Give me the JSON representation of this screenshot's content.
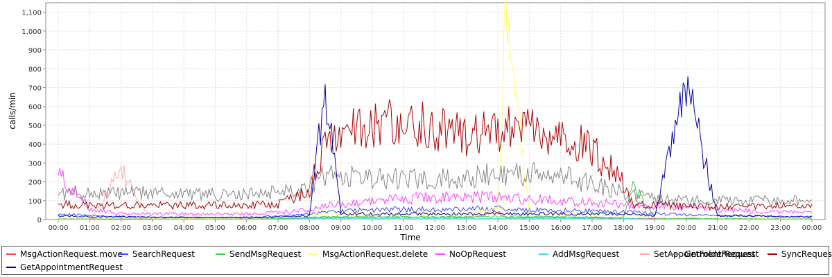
{
  "chart_data": {
    "type": "line",
    "title": "",
    "xlabel": "Time",
    "ylabel": "calls/min",
    "ylim": [
      0,
      1150
    ],
    "y_ticks": [
      0,
      100,
      200,
      300,
      400,
      500,
      600,
      700,
      800,
      900,
      1000,
      1100
    ],
    "y_tick_labels": [
      "0",
      "100",
      "200",
      "300",
      "400",
      "500",
      "600",
      "700",
      "800",
      "900",
      "1,000",
      "1,100"
    ],
    "x_tick_labels": [
      "00:00",
      "01:00",
      "02:00",
      "03:00",
      "04:00",
      "05:00",
      "06:00",
      "07:00",
      "08:00",
      "09:00",
      "10:00",
      "11:00",
      "12:00",
      "13:00",
      "14:00",
      "15:00",
      "16:00",
      "17:00",
      "18:00",
      "19:00",
      "20:00",
      "21:00",
      "22:00",
      "23:00",
      "00:00"
    ],
    "x_hours": [
      0,
      1,
      2,
      3,
      4,
      5,
      6,
      7,
      8,
      8.5,
      9,
      10,
      11,
      12,
      13,
      14,
      14.25,
      15,
      16,
      17,
      18,
      18.3,
      19,
      20,
      21,
      22,
      23,
      24
    ],
    "grid": true,
    "legend_position": "bottom",
    "series": [
      {
        "name": "MsgActionRequest.move",
        "color": "#ff4444",
        "values": [
          5,
          5,
          5,
          5,
          5,
          5,
          5,
          5,
          8,
          10,
          10,
          12,
          12,
          12,
          10,
          40,
          10,
          10,
          10,
          8,
          6,
          6,
          5,
          5,
          5,
          5,
          5,
          5
        ]
      },
      {
        "name": "SearchRequest",
        "color": "#4444ff",
        "values": [
          30,
          20,
          15,
          12,
          10,
          10,
          12,
          18,
          30,
          40,
          45,
          50,
          55,
          50,
          55,
          60,
          55,
          50,
          50,
          45,
          40,
          40,
          30,
          25,
          20,
          20,
          15,
          15
        ]
      },
      {
        "name": "SendMsgRequest",
        "color": "#44cc44",
        "values": [
          5,
          3,
          3,
          2,
          2,
          2,
          3,
          5,
          10,
          15,
          15,
          15,
          15,
          15,
          15,
          15,
          15,
          15,
          15,
          12,
          10,
          180,
          8,
          6,
          5,
          5,
          5,
          5
        ]
      },
      {
        "name": "MsgActionRequest.delete",
        "color": "#ffff66",
        "values": [
          5,
          5,
          5,
          5,
          5,
          5,
          5,
          10,
          20,
          30,
          30,
          30,
          30,
          30,
          30,
          60,
          1130,
          30,
          30,
          25,
          20,
          20,
          10,
          10,
          8,
          8,
          5,
          5
        ]
      },
      {
        "name": "NoOpRequest",
        "color": "#ff44ff",
        "values": [
          240,
          60,
          30,
          30,
          30,
          30,
          30,
          40,
          50,
          70,
          80,
          100,
          110,
          120,
          115,
          120,
          110,
          110,
          100,
          90,
          80,
          75,
          70,
          60,
          50,
          45,
          40,
          40
        ]
      },
      {
        "name": "AddMsgRequest",
        "color": "#44dddd",
        "values": [
          3,
          3,
          3,
          3,
          3,
          3,
          3,
          3,
          5,
          5,
          5,
          5,
          5,
          5,
          5,
          5,
          5,
          5,
          5,
          5,
          5,
          5,
          3,
          3,
          3,
          3,
          3,
          3
        ]
      },
      {
        "name": "SetAppointmentRequest",
        "color": "#ffaaaa",
        "values": [
          0,
          0,
          250,
          0,
          0,
          0,
          0,
          0,
          0,
          0,
          0,
          0,
          0,
          0,
          0,
          0,
          0,
          0,
          0,
          0,
          0,
          0,
          0,
          0,
          0,
          0,
          0,
          0
        ]
      },
      {
        "name": "GetFolderRequest",
        "color": "#888888",
        "values": [
          140,
          140,
          140,
          140,
          140,
          130,
          130,
          150,
          180,
          240,
          230,
          220,
          210,
          210,
          220,
          240,
          240,
          240,
          230,
          190,
          140,
          130,
          110,
          100,
          100,
          100,
          100,
          100
        ]
      },
      {
        "name": "SyncRequest",
        "color": "#aa0000",
        "values": [
          80,
          75,
          75,
          75,
          75,
          75,
          75,
          80,
          160,
          400,
          470,
          500,
          530,
          480,
          460,
          440,
          480,
          460,
          440,
          370,
          200,
          80,
          80,
          70,
          70,
          70,
          70,
          70
        ]
      },
      {
        "name": "GetAppointmentRequest",
        "color": "#0000aa",
        "values": [
          20,
          15,
          15,
          12,
          12,
          10,
          10,
          12,
          20,
          700,
          30,
          30,
          30,
          30,
          30,
          30,
          30,
          30,
          30,
          30,
          30,
          30,
          20,
          720,
          20,
          20,
          15,
          15
        ]
      }
    ]
  }
}
